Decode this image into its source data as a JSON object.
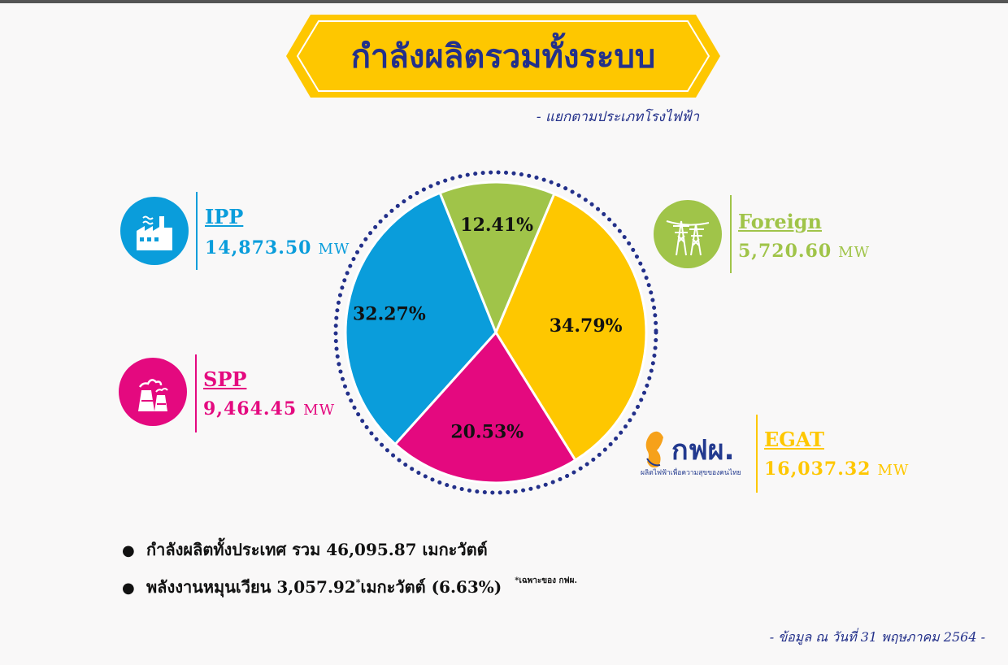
{
  "title": "กำลังผลิตรวมทั้งระบบ",
  "subtitle": "-  แยกตามประเภทโรงไฟฟ้า",
  "colors": {
    "ipp": "#0a9ddb",
    "foreign": "#a0c449",
    "egat": "#fec700",
    "spp": "#e4097f",
    "navy": "#23308a"
  },
  "legend": {
    "ipp": {
      "name": "IPP",
      "value": "14,873.50",
      "unit": "MW",
      "icon": "factory-icon"
    },
    "spp": {
      "name": "SPP",
      "value": "9,464.45",
      "unit": "MW",
      "icon": "cooling-tower-icon"
    },
    "foreign": {
      "name": "Foreign",
      "value": "5,720.60",
      "unit": "MW",
      "icon": "transmission-tower-icon"
    },
    "egat": {
      "name": "EGAT",
      "value": "16,037.32",
      "unit": "MW",
      "icon": "egat-logo"
    }
  },
  "egat_logo": {
    "text": "กฟผ.",
    "tagline": "ผลิตไฟฟ้าเพื่อความสุขของคนไทย"
  },
  "chart_data": {
    "type": "pie",
    "categories": [
      "IPP",
      "Foreign",
      "EGAT",
      "SPP"
    ],
    "values": [
      32.27,
      12.41,
      34.79,
      20.53
    ],
    "labels": [
      "32.27%",
      "12.41%",
      "34.79%",
      "20.53%"
    ],
    "colors": [
      "#0a9ddb",
      "#a0c449",
      "#fec700",
      "#e4097f"
    ]
  },
  "bullets": {
    "line1": "กำลังผลิตทั้งประเทศ  รวม  46,095.87  เมกะวัตต์",
    "line2_a": "พลังงานหมุนเวียน  3,057.92",
    "line2_sup": "*",
    "line2_b": "  เมกะวัตต์  (6.63%)",
    "note": "*เฉพาะของ  กฟผ."
  },
  "footer": "-  ข้อมูล  ณ  วันที่  31  พฤษภาคม  2564  -"
}
